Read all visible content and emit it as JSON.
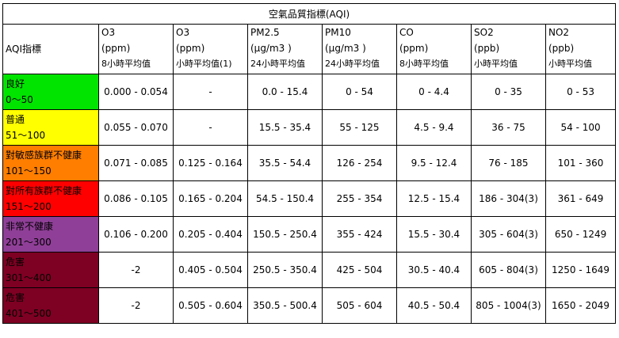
{
  "title": "空氣品質指標(AQI)",
  "header": {
    "aqi_label": "AQI指標",
    "columns": [
      {
        "name": "O3",
        "unit": "(ppm)",
        "avg": "8小時平均值"
      },
      {
        "name": "O3",
        "unit": "(ppm)",
        "avg": "小時平均值(1)"
      },
      {
        "name": "PM2.5",
        "unit": "(μg/m3 )",
        "avg": "24小時平均值"
      },
      {
        "name": "PM10",
        "unit": "(μg/m3 )",
        "avg": "24小時平均值"
      },
      {
        "name": "CO",
        "unit": "(ppm)",
        "avg": "8小時平均值"
      },
      {
        "name": "SO2",
        "unit": "(ppb)",
        "avg": "小時平均值"
      },
      {
        "name": "NO2",
        "unit": "(ppb)",
        "avg": "小時平均值"
      }
    ]
  },
  "rows": [
    {
      "level": "良好",
      "range": "0～50",
      "color": "#00e400",
      "text_color": "#000000",
      "values": [
        "0.000 - 0.054",
        "-",
        "0.0 - 15.4",
        "0 - 54",
        "0 - 4.4",
        "0 - 35",
        "0 - 53"
      ]
    },
    {
      "level": "普通",
      "range": "51～100",
      "color": "#ffff00",
      "text_color": "#000000",
      "values": [
        "0.055 - 0.070",
        "-",
        "15.5 - 35.4",
        "55 - 125",
        "4.5 - 9.4",
        "36 - 75",
        "54 - 100"
      ]
    },
    {
      "level": "對敏感族群不健康",
      "range": "101～150",
      "color": "#ff7e00",
      "text_color": "#000000",
      "values": [
        "0.071 - 0.085",
        "0.125 - 0.164",
        "35.5 - 54.4",
        "126 - 254",
        "9.5 - 12.4",
        "76 - 185",
        "101 - 360"
      ]
    },
    {
      "level": "對所有族群不健康",
      "range": "151～200",
      "color": "#ff0000",
      "text_color": "#000000",
      "values": [
        "0.086 - 0.105",
        "0.165 - 0.204",
        "54.5 - 150.4",
        "255 - 354",
        "12.5 - 15.4",
        "186 - 304(3)",
        "361 - 649"
      ]
    },
    {
      "level": "非常不健康",
      "range": "201～300",
      "color": "#8f3f97",
      "text_color": "#000000",
      "values": [
        "0.106 - 0.200",
        "0.205 - 0.404",
        "150.5 - 250.4",
        "355 - 424",
        "15.5 - 30.4",
        "305 - 604(3)",
        "650 - 1249"
      ]
    },
    {
      "level": "危害",
      "range": "301～400",
      "color": "#7e0023",
      "text_color": "#000000",
      "values": [
        "-2",
        "0.405 - 0.504",
        "250.5 - 350.4",
        "425 - 504",
        "30.5 - 40.4",
        "605 - 804(3)",
        "1250 - 1649"
      ],
      "first_value_span": true
    },
    {
      "level": "危害",
      "range": "401～500",
      "color": "#7e0023",
      "text_color": "#000000",
      "values": [
        "-2",
        "0.505 - 0.604",
        "350.5 - 500.4",
        "505 - 604",
        "40.5 - 50.4",
        "805 - 1004(3)",
        "1650 - 2049"
      ],
      "first_value_span": true
    }
  ]
}
